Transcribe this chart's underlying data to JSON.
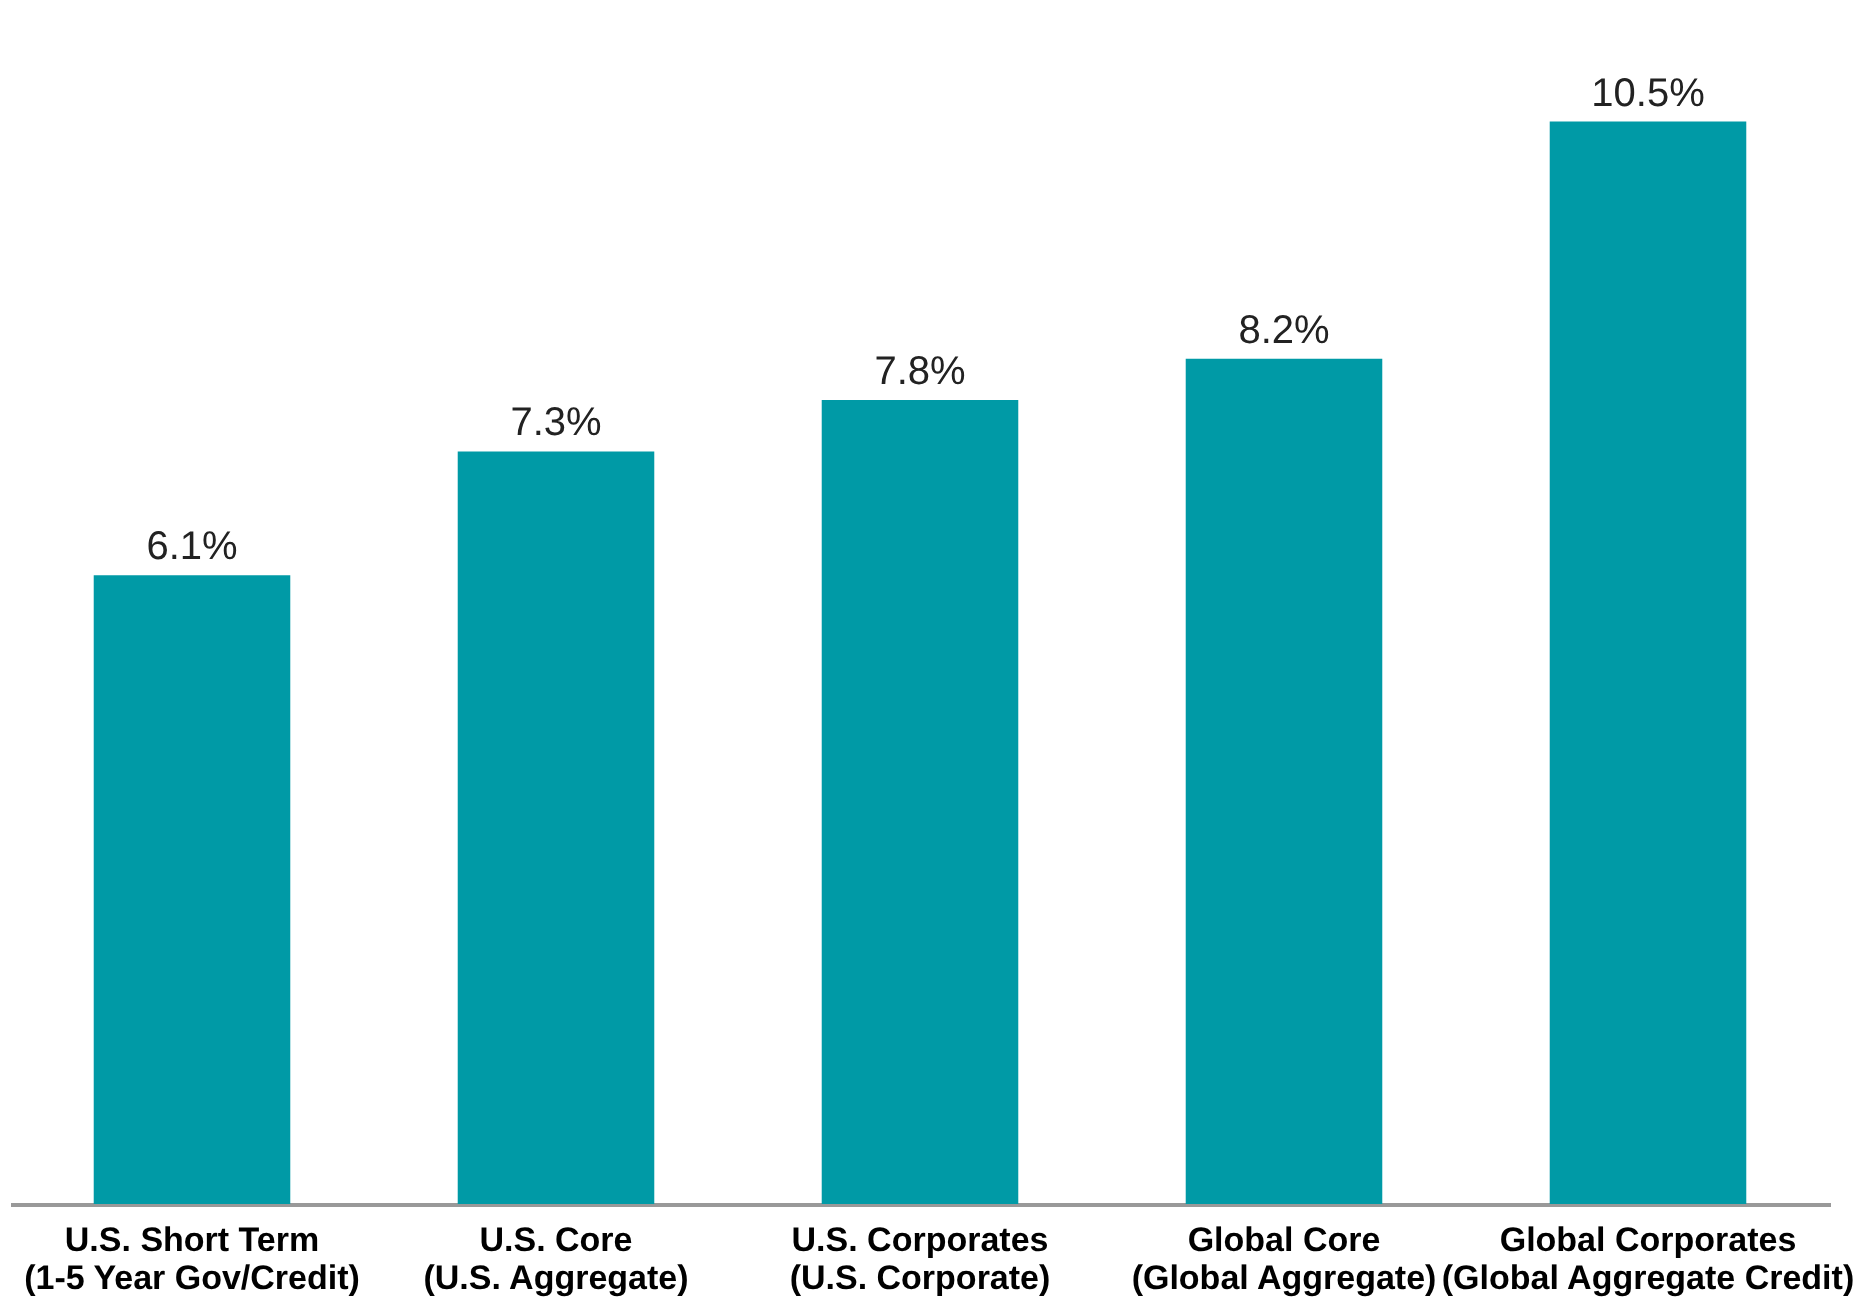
{
  "chart_data": {
    "type": "bar",
    "categories": [
      "U.S. Short Term\n(1-5 Year Gov/Credit)",
      "U.S. Core\n(U.S. Aggregate)",
      "U.S. Corporates\n(U.S. Corporate)",
      "Global Core\n(Global Aggregate)",
      "Global Corporates\n(Global Aggregate Credit)"
    ],
    "values": [
      6.1,
      7.3,
      7.8,
      8.2,
      10.5
    ],
    "value_labels": [
      "6.1%",
      "7.3%",
      "7.8%",
      "8.2%",
      "10.5%"
    ],
    "color": "#009aa6"
  }
}
